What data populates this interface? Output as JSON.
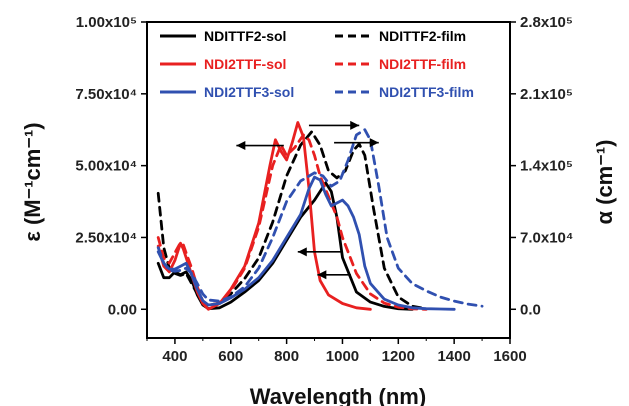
{
  "chart_data": {
    "type": "line",
    "title": "",
    "xlabel": "Wavelength (nm)",
    "ylabel_left": "ε (M⁻¹cm⁻¹)",
    "ylabel_right": "α (cm⁻¹)",
    "xlim": [
      300,
      1600
    ],
    "ylim_left": [
      -10000,
      100000
    ],
    "ylim_right": [
      -28000,
      280000
    ],
    "x_ticks": [
      "400",
      "600",
      "800",
      "1000",
      "1200",
      "1400",
      "1600"
    ],
    "y_left_ticks": [
      "0.00",
      "2.50x10⁴",
      "5.00x10⁴",
      "7.50x10⁴",
      "1.00x10⁵"
    ],
    "y_right_ticks": [
      "0.0",
      "7.0x10⁴",
      "1.4x10⁵",
      "2.1x10⁵",
      "2.8x10⁵"
    ],
    "legend_position": "top",
    "series": [
      {
        "name": "NDITTF2-sol",
        "color": "#000000",
        "style": "solid",
        "axis": "left",
        "x": [
          340,
          360,
          380,
          400,
          420,
          440,
          460,
          480,
          500,
          520,
          560,
          600,
          650,
          700,
          750,
          800,
          850,
          900,
          940,
          960,
          980,
          1000,
          1050,
          1100,
          1150,
          1200,
          1250
        ],
        "y": [
          16000,
          11000,
          11000,
          13000,
          12000,
          13000,
          10000,
          5000,
          1500,
          200,
          500,
          2500,
          6000,
          10000,
          16000,
          24000,
          32000,
          38000,
          44000,
          41000,
          32000,
          18000,
          6000,
          2500,
          1000,
          200,
          0
        ]
      },
      {
        "name": "NDITTF2-film",
        "color": "#000000",
        "style": "dashed",
        "axis": "right",
        "x": [
          340,
          360,
          380,
          400,
          420,
          440,
          460,
          480,
          500,
          520,
          560,
          600,
          650,
          700,
          750,
          800,
          850,
          890,
          920,
          950,
          980,
          1010,
          1040,
          1060,
          1080,
          1110,
          1150,
          1200,
          1250,
          1300
        ],
        "y": [
          113000,
          60000,
          40000,
          35000,
          33000,
          35000,
          25000,
          15000,
          8000,
          4000,
          6000,
          15000,
          30000,
          50000,
          85000,
          130000,
          160000,
          173000,
          160000,
          135000,
          128000,
          135000,
          155000,
          161000,
          150000,
          100000,
          40000,
          12000,
          3000,
          500
        ]
      },
      {
        "name": "NDI2TTF-sol",
        "color": "#e82020",
        "style": "solid",
        "axis": "left",
        "x": [
          340,
          360,
          380,
          400,
          420,
          430,
          440,
          460,
          480,
          500,
          520,
          560,
          600,
          650,
          700,
          740,
          760,
          780,
          800,
          820,
          840,
          860,
          880,
          900,
          920,
          950,
          1000,
          1050,
          1100
        ],
        "y": [
          22000,
          15000,
          13000,
          17000,
          23000,
          21000,
          18000,
          12000,
          6000,
          2000,
          0,
          2000,
          7000,
          15000,
          30000,
          50000,
          59000,
          55000,
          52000,
          58000,
          65000,
          60000,
          42000,
          20000,
          10000,
          5000,
          2000,
          500,
          0
        ]
      },
      {
        "name": "NDI2TTF-film",
        "color": "#e82020",
        "style": "dashed",
        "axis": "right",
        "x": [
          340,
          360,
          380,
          400,
          420,
          430,
          440,
          460,
          480,
          500,
          520,
          560,
          600,
          650,
          700,
          750,
          780,
          800,
          830,
          860,
          880,
          900,
          920,
          950,
          980,
          1000,
          1050,
          1100,
          1150,
          1200,
          1250,
          1300
        ],
        "y": [
          70000,
          50000,
          45000,
          55000,
          65000,
          63000,
          55000,
          40000,
          22000,
          8000,
          4000,
          6000,
          18000,
          40000,
          80000,
          140000,
          160000,
          150000,
          158000,
          170000,
          165000,
          150000,
          130000,
          110000,
          90000,
          70000,
          35000,
          15000,
          6000,
          2000,
          500,
          0
        ]
      },
      {
        "name": "NDI2TTF3-sol",
        "color": "#3050b0",
        "style": "solid",
        "axis": "left",
        "x": [
          340,
          360,
          380,
          400,
          420,
          440,
          460,
          480,
          500,
          520,
          560,
          600,
          650,
          700,
          750,
          800,
          850,
          880,
          900,
          920,
          940,
          960,
          980,
          1000,
          1020,
          1040,
          1060,
          1080,
          1100,
          1150,
          1200,
          1250,
          1300,
          1350,
          1400
        ],
        "y": [
          20000,
          16000,
          14000,
          14000,
          15000,
          16000,
          12000,
          7000,
          3000,
          1500,
          2000,
          4000,
          7000,
          11000,
          17000,
          25000,
          33000,
          42000,
          46000,
          45000,
          40000,
          36000,
          37000,
          38000,
          36000,
          32000,
          26000,
          15000,
          9000,
          3500,
          1500,
          500,
          200,
          100,
          0
        ]
      },
      {
        "name": "NDI2TTF3-film",
        "color": "#3050b0",
        "style": "dashed",
        "axis": "right",
        "x": [
          340,
          360,
          380,
          400,
          420,
          440,
          460,
          480,
          500,
          520,
          560,
          600,
          650,
          700,
          750,
          800,
          850,
          900,
          930,
          960,
          990,
          1020,
          1050,
          1080,
          1100,
          1130,
          1160,
          1200,
          1250,
          1300,
          1350,
          1400,
          1450,
          1500
        ],
        "y": [
          60000,
          45000,
          38000,
          37000,
          38000,
          40000,
          35000,
          25000,
          15000,
          9000,
          8000,
          12000,
          22000,
          40000,
          70000,
          105000,
          125000,
          133000,
          130000,
          120000,
          125000,
          145000,
          170000,
          175000,
          165000,
          120000,
          70000,
          40000,
          25000,
          18000,
          12000,
          8000,
          5000,
          3000
        ]
      }
    ],
    "annotations": [
      {
        "type": "arrow",
        "direction": "left",
        "x_from": 790,
        "x_to": 620,
        "y": 57000
      },
      {
        "type": "arrow",
        "direction": "right",
        "x_from": 880,
        "x_to": 1060,
        "y": 64000
      },
      {
        "type": "arrow",
        "direction": "right",
        "x_from": 970,
        "x_to": 1130,
        "y": 58000
      },
      {
        "type": "arrow",
        "direction": "left",
        "x_from": 1000,
        "x_to": 840,
        "y": 20000
      },
      {
        "type": "arrow",
        "direction": "left",
        "x_from": 1030,
        "x_to": 910,
        "y": 12000
      }
    ]
  }
}
